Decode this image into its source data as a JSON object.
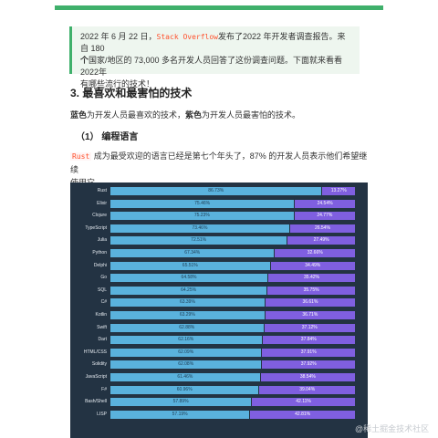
{
  "intro_note": {
    "part1": "2022 年 6 月 22 日，",
    "code": "Stack Overflow",
    "part2": "发布了2022 年开发者调查报告。来自 180",
    "line2_bold": "个",
    "line2_rest": "国家/地区的 73,000 多名开发人员回答了这份调查问题。下面就来看看2022年",
    "line3": "有哪些流行的技术！"
  },
  "section_title": "3. 最喜欢和最害怕的技术",
  "legend_desc": {
    "blue_word": "蓝色",
    "blue_rest": "为开发人员最喜欢的技术，",
    "purple_word": "紫色",
    "purple_rest": "为开发人员最害怕的技术。"
  },
  "subsection_title": "（1） 编程语言",
  "paragraph": {
    "code": "Rust",
    "text1": " 成为最受欢迎的语言已经是第七个年头了，87% 的开发人员表示他们希望继续",
    "text2": "使用它。"
  },
  "chart_data": {
    "type": "bar",
    "stacked": true,
    "orientation": "horizontal",
    "categories": [
      "Rust",
      "Elixir",
      "Clojure",
      "TypeScript",
      "Julia",
      "Python",
      "Delphi",
      "Go",
      "SQL",
      "C#",
      "Kotlin",
      "Swift",
      "Dart",
      "HTML/CSS",
      "Solidity",
      "JavaScript",
      "F#",
      "Bash/Shell",
      "LISP"
    ],
    "series": [
      {
        "name": "Loved",
        "color": "#5ab2dd",
        "values": [
          86.73,
          75.46,
          75.23,
          73.46,
          72.51,
          67.34,
          65.51,
          64.58,
          64.25,
          63.39,
          63.29,
          62.88,
          62.16,
          62.09,
          62.08,
          61.46,
          60.96,
          57.89,
          57.19
        ]
      },
      {
        "name": "Dreaded",
        "color": "#7f5fe0",
        "values": [
          13.27,
          24.54,
          24.77,
          26.54,
          27.49,
          32.66,
          34.49,
          35.42,
          35.75,
          36.61,
          36.71,
          37.12,
          37.84,
          37.91,
          37.92,
          38.54,
          39.04,
          42.11,
          42.81
        ]
      }
    ],
    "value_labels_loved": [
      "86.73%",
      "75.46%",
      "75.23%",
      "73.46%",
      "72.51%",
      "67.34%",
      "65.51%",
      "64.58%",
      "64.25%",
      "63.39%",
      "63.29%",
      "62.88%",
      "62.16%",
      "62.09%",
      "62.08%",
      "61.46%",
      "60.96%",
      "57.89%",
      "57.19%"
    ],
    "value_labels_dreaded": [
      "13.27%",
      "24.54%",
      "24.77%",
      "26.54%",
      "27.49%",
      "32.66%",
      "34.49%",
      "35.42%",
      "35.75%",
      "36.61%",
      "36.71%",
      "37.12%",
      "37.84%",
      "37.91%",
      "37.92%",
      "38.54%",
      "39.04%",
      "42.11%",
      "42.81%"
    ],
    "background": "#233343"
  },
  "watermark": "@稀土掘金技术社区"
}
